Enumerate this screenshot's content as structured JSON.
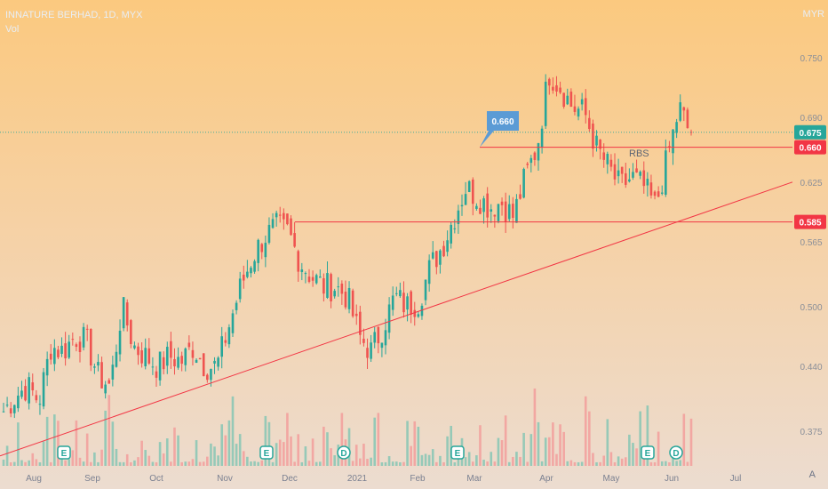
{
  "legend": {
    "title": "INNATURE BERHAD, 1D, MYX",
    "vol": "Vol"
  },
  "currency": "MYR",
  "axis_symbol": "A",
  "colors": {
    "up": "#26a69a",
    "down": "#ef5350",
    "line": "#f23645",
    "vol_up": "#7fc4b3",
    "vol_down": "#f29a98",
    "marker_bubble": "#5b9bd5"
  },
  "chart_data": {
    "type": "candlestick",
    "title": "INNATURE BERHAD, 1D, MYX",
    "ylim": [
      0.34,
      0.79
    ],
    "y_ticks": [
      "0.375",
      "0.440",
      "0.500",
      "0.565",
      "0.625",
      "0.690",
      "0.750"
    ],
    "x_ticks": [
      "Aug",
      "Sep",
      "Oct",
      "Nov",
      "Dec",
      "2021",
      "Feb",
      "Mar",
      "Apr",
      "May",
      "Jun",
      "Jul"
    ],
    "price_labels": [
      {
        "value": 0.675,
        "text": "0.675",
        "color": "#26a69a"
      },
      {
        "value": 0.66,
        "text": "0.660",
        "color": "#f23645"
      },
      {
        "value": 0.585,
        "text": "0.585",
        "color": "#f23645"
      }
    ],
    "horizontal_lines": [
      {
        "value": 0.66,
        "from": "Mar"
      },
      {
        "value": 0.585,
        "from": "Dec"
      }
    ],
    "trendline": {
      "start": [
        "Aug",
        0.35
      ],
      "end": [
        "Jul",
        0.625
      ]
    },
    "current_price": 0.675,
    "annotations": [
      {
        "text": "0.660",
        "type": "callout"
      },
      {
        "text": "RBS",
        "type": "label"
      }
    ],
    "event_markers": [
      {
        "text": "E",
        "month": "Aug"
      },
      {
        "text": "E",
        "month": "Nov"
      },
      {
        "text": "D",
        "month": "Dec"
      },
      {
        "text": "E",
        "month": "Feb"
      },
      {
        "text": "E",
        "month": "May"
      },
      {
        "text": "D",
        "month": "Jun"
      }
    ],
    "price_path": [
      0.395,
      0.41,
      0.42,
      0.405,
      0.46,
      0.455,
      0.47,
      0.465,
      0.43,
      0.42,
      0.5,
      0.46,
      0.45,
      0.44,
      0.45,
      0.445,
      0.46,
      0.44,
      0.44,
      0.48,
      0.52,
      0.55,
      0.57,
      0.58,
      0.575,
      0.545,
      0.53,
      0.52,
      0.52,
      0.51,
      0.47,
      0.455,
      0.48,
      0.51,
      0.5,
      0.505,
      0.54,
      0.56,
      0.59,
      0.62,
      0.61,
      0.6,
      0.605,
      0.59,
      0.63,
      0.66,
      0.735,
      0.72,
      0.7,
      0.695,
      0.66,
      0.64,
      0.62,
      0.63,
      0.62,
      0.6,
      0.65,
      0.7,
      0.67
    ]
  }
}
